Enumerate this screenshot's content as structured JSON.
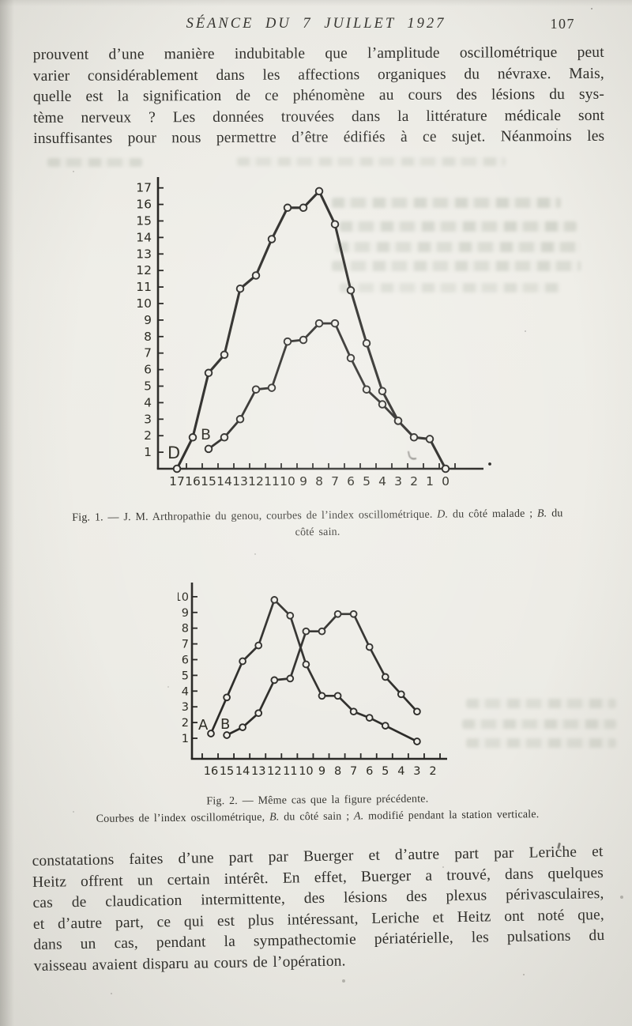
{
  "header": {
    "title": "SÉANCE DU 7 JUILLET 1927",
    "page_number": "107"
  },
  "paragraph_top": {
    "lines": [
      "prouvent d’une manière indubitable que l’amplitude oscillométrique peut",
      "varier considérablement dans les affections organiques du névraxe. Mais,",
      "quelle est la signification de ce phénomène au cours des lésions du sys-",
      "tème nerveux ? Les données trouvées dans la littérature médicale sont",
      "insuffisantes pour nous permettre d’être édifiés à ce sujet. Néanmoins les"
    ]
  },
  "fig1_caption": {
    "prefix": "Fig. 1. — ",
    "body": "J. M. Arthropathie du genou, courbes de l’index oscillométrique. ",
    "d": "D.",
    "mid": " du côté malade ; ",
    "b": "B.",
    "tail": " du",
    "line2": "côté sain."
  },
  "fig2_caption": {
    "line1": "Fig. 2. — Même cas que la figure précédente.",
    "lead": "Courbes de l’index oscillométrique, ",
    "b": "B.",
    "mid": " du côté sain ; ",
    "a": "A.",
    "tail": " modifié pendant la station verticale."
  },
  "paragraph_bottom": {
    "lines": [
      "constatations faites d’une part par Buerger et d’autre part par Leriche et",
      "Heitz offrent un certain intérêt. En effet, Buerger a trouvé, dans quelques",
      "cas de claudication intermittente, des lésions des plexus périvasculaires,",
      "et d’autre part, ce qui est plus intéressant, Leriche et Heitz ont noté que,",
      "dans un cas, pendant la sympathectomie périatérielle, les pulsations du",
      "vaisseau avaient disparu au cours de l’opération."
    ]
  },
  "ink_color": "#201f1c",
  "paper_color": "#edece6",
  "chart_data": [
    {
      "id": "fig1",
      "type": "line",
      "title": "Fig. 1 — Courbes de l’index oscillométrique (arthropathie du genou)",
      "xlabel": "",
      "ylabel": "",
      "grid": false,
      "x_ticks": [
        17,
        16,
        15,
        14,
        13,
        12,
        11,
        10,
        9,
        8,
        7,
        6,
        5,
        4,
        3,
        2,
        1,
        0
      ],
      "y_ticks": [
        1,
        2,
        3,
        4,
        5,
        6,
        7,
        8,
        9,
        10,
        11,
        12,
        13,
        14,
        15,
        16,
        17
      ],
      "ylim": [
        0,
        17.5
      ],
      "x_axis_order": "decreasing left to right",
      "series": [
        {
          "name": "D",
          "points": [
            [
              17,
              0
            ],
            [
              16,
              1.9
            ],
            [
              15,
              5.8
            ],
            [
              14,
              6.9
            ],
            [
              13,
              10.9
            ],
            [
              12,
              11.7
            ],
            [
              11,
              13.9
            ],
            [
              10,
              15.8
            ],
            [
              9,
              15.8
            ],
            [
              8,
              16.8
            ],
            [
              7,
              14.8
            ],
            [
              6,
              10.8
            ],
            [
              5,
              7.6
            ],
            [
              4,
              4.7
            ],
            [
              3,
              2.9
            ],
            [
              2,
              1.9
            ],
            [
              1,
              1.8
            ],
            [
              0,
              0
            ]
          ]
        },
        {
          "name": "B",
          "points": [
            [
              15,
              1.2
            ],
            [
              14,
              1.9
            ],
            [
              13,
              3
            ],
            [
              12,
              4.8
            ],
            [
              11,
              4.9
            ],
            [
              10,
              7.7
            ],
            [
              9,
              7.8
            ],
            [
              8,
              8.8
            ],
            [
              7,
              8.8
            ],
            [
              6,
              6.7
            ],
            [
              5,
              4.8
            ],
            [
              4,
              3.9
            ],
            [
              3,
              2.9
            ]
          ]
        }
      ]
    },
    {
      "id": "fig2",
      "type": "line",
      "title": "Fig. 2 — Courbes de l’index oscillométrique (même cas)",
      "xlabel": "",
      "ylabel": "",
      "grid": false,
      "x_ticks": [
        16,
        15,
        14,
        13,
        12,
        11,
        10,
        9,
        8,
        7,
        6,
        5,
        4,
        3,
        2
      ],
      "y_ticks": [
        1,
        2,
        3,
        4,
        5,
        6,
        7,
        8,
        9,
        10
      ],
      "ylim": [
        0,
        10.5
      ],
      "x_axis_order": "decreasing left to right",
      "series": [
        {
          "name": "A",
          "points": [
            [
              16,
              1.3
            ],
            [
              15,
              3.6
            ],
            [
              14,
              5.9
            ],
            [
              13,
              6.9
            ],
            [
              12,
              9.8
            ],
            [
              11,
              8.8
            ],
            [
              10,
              5.7
            ],
            [
              9,
              3.7
            ],
            [
              8,
              3.7
            ],
            [
              7,
              2.7
            ],
            [
              6,
              2.3
            ],
            [
              5,
              1.8
            ],
            [
              3,
              0.8
            ]
          ]
        },
        {
          "name": "B",
          "points": [
            [
              15,
              1.2
            ],
            [
              14,
              1.7
            ],
            [
              13,
              2.6
            ],
            [
              12,
              4.7
            ],
            [
              11,
              4.8
            ],
            [
              10,
              7.8
            ],
            [
              9,
              7.8
            ],
            [
              8,
              8.9
            ],
            [
              7,
              8.9
            ],
            [
              6,
              6.8
            ],
            [
              5,
              4.9
            ],
            [
              4,
              3.8
            ],
            [
              3,
              2.7
            ]
          ]
        }
      ]
    }
  ]
}
